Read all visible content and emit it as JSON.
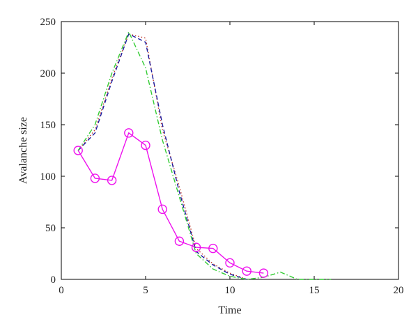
{
  "chart_data": {
    "type": "line",
    "title": "",
    "xlabel": "Time",
    "ylabel": "Avalanche size",
    "xlim": [
      0,
      20
    ],
    "ylim": [
      0,
      250
    ],
    "xticks": [
      0,
      5,
      10,
      15,
      20
    ],
    "yticks": [
      0,
      50,
      100,
      150,
      200,
      250
    ],
    "grid": false,
    "legend": "none",
    "series": [
      {
        "style": "dotted",
        "color": "#c0392b",
        "marker": "none",
        "x": [
          1,
          2,
          3,
          4,
          5,
          6,
          7,
          8,
          9,
          10,
          11
        ],
        "y": [
          125,
          145,
          195,
          238,
          234,
          145,
          90,
          30,
          15,
          6,
          0
        ]
      },
      {
        "style": "dashed",
        "color": "#1a1aa0",
        "marker": "none",
        "x": [
          1,
          2,
          3,
          4,
          5,
          6,
          7,
          8,
          9,
          10,
          11
        ],
        "y": [
          125,
          142,
          192,
          238,
          230,
          150,
          85,
          27,
          14,
          5,
          0
        ]
      },
      {
        "style": "dashdot",
        "color": "#33cc33",
        "marker": "none",
        "x": [
          1,
          2,
          3,
          4,
          5,
          6,
          7,
          8,
          9,
          10,
          11,
          12,
          13,
          14,
          15,
          16
        ],
        "y": [
          125,
          150,
          200,
          240,
          205,
          135,
          80,
          25,
          10,
          3,
          0,
          2,
          7,
          0,
          0,
          0
        ]
      },
      {
        "style": "solid",
        "color": "#ee11ee",
        "marker": "circle",
        "x": [
          1,
          2,
          3,
          4,
          5,
          6,
          7,
          8,
          9,
          10,
          11,
          12
        ],
        "y": [
          125,
          98,
          96,
          142,
          130,
          68,
          37,
          31,
          30,
          16,
          8,
          6
        ]
      }
    ]
  }
}
